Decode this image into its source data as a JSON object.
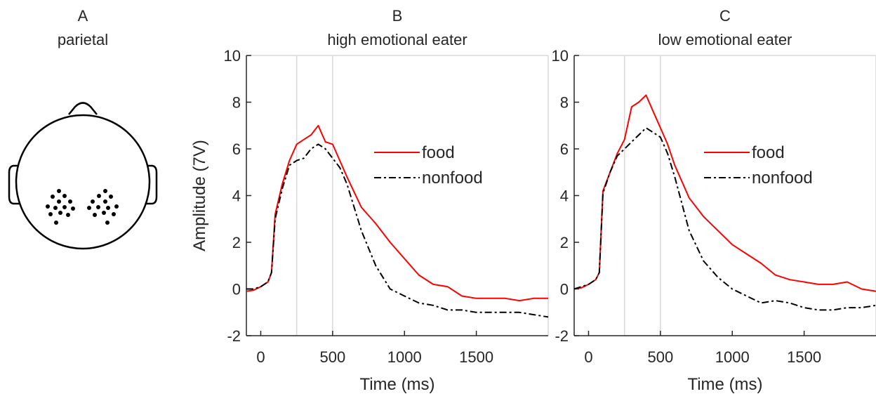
{
  "panel_a": {
    "letter": "A",
    "title": "parietal"
  },
  "colors": {
    "food": "#ff0000",
    "nonfood": "#000000",
    "window": "#d9d9d9",
    "axis": "#262626"
  },
  "chart_data": [
    {
      "type": "line",
      "letter": "B",
      "title": "high emotional eater",
      "xlabel": "Time (ms)",
      "ylabel": "Amplitude (7V)",
      "xlim": [
        -100,
        2000
      ],
      "ylim": [
        -2,
        10
      ],
      "xticks": [
        0,
        500,
        1000,
        1500
      ],
      "yticks": [
        -2,
        0,
        2,
        4,
        6,
        8,
        10
      ],
      "window_lines": [
        250,
        500
      ],
      "legend_position": "center-right",
      "series": [
        {
          "name": "food",
          "style": "solid",
          "x": [
            -100,
            -50,
            0,
            50,
            75,
            100,
            150,
            200,
            250,
            300,
            350,
            400,
            450,
            500,
            550,
            600,
            700,
            800,
            900,
            1000,
            1100,
            1200,
            1300,
            1400,
            1500,
            1600,
            1700,
            1800,
            1900,
            2000
          ],
          "y": [
            -0.1,
            -0.05,
            0.1,
            0.3,
            0.7,
            3.2,
            4.5,
            5.5,
            6.2,
            6.4,
            6.6,
            7.0,
            6.3,
            6.2,
            5.5,
            4.8,
            3.5,
            2.8,
            2.0,
            1.3,
            0.6,
            0.2,
            0.1,
            -0.3,
            -0.4,
            -0.4,
            -0.4,
            -0.5,
            -0.4,
            -0.4
          ]
        },
        {
          "name": "nonfood",
          "style": "dash-dot",
          "x": [
            -100,
            -50,
            0,
            50,
            75,
            100,
            150,
            200,
            250,
            300,
            350,
            400,
            450,
            500,
            550,
            600,
            700,
            800,
            900,
            1000,
            1100,
            1200,
            1300,
            1400,
            1500,
            1600,
            1700,
            1800,
            1900,
            2000
          ],
          "y": [
            0.0,
            0.0,
            0.1,
            0.3,
            0.7,
            3.0,
            4.3,
            5.3,
            5.5,
            5.6,
            6.0,
            6.2,
            6.0,
            5.6,
            5.2,
            4.5,
            2.5,
            1.0,
            0.0,
            -0.3,
            -0.6,
            -0.7,
            -0.9,
            -0.9,
            -1.0,
            -1.0,
            -1.0,
            -1.0,
            -1.1,
            -1.2
          ]
        }
      ]
    },
    {
      "type": "line",
      "letter": "C",
      "title": "low emotional eater",
      "xlabel": "Time (ms)",
      "ylabel": "",
      "xlim": [
        -100,
        2000
      ],
      "ylim": [
        -2,
        10
      ],
      "xticks": [
        0,
        500,
        1000,
        1500
      ],
      "yticks": [
        -2,
        0,
        2,
        4,
        6,
        8,
        10
      ],
      "window_lines": [
        250,
        500
      ],
      "legend_position": "center-right",
      "series": [
        {
          "name": "food",
          "style": "solid",
          "x": [
            -100,
            -50,
            0,
            50,
            75,
            100,
            150,
            200,
            250,
            300,
            350,
            400,
            450,
            500,
            550,
            600,
            700,
            800,
            900,
            1000,
            1100,
            1200,
            1300,
            1400,
            1500,
            1600,
            1700,
            1800,
            1900,
            2000
          ],
          "y": [
            0.0,
            0.05,
            0.2,
            0.4,
            0.7,
            4.2,
            5.0,
            5.8,
            6.4,
            7.8,
            8.0,
            8.3,
            7.6,
            6.9,
            6.2,
            5.3,
            3.9,
            3.1,
            2.5,
            1.9,
            1.5,
            1.1,
            0.6,
            0.4,
            0.3,
            0.2,
            0.2,
            0.3,
            0.0,
            -0.1
          ]
        },
        {
          "name": "nonfood",
          "style": "dash-dot",
          "x": [
            -100,
            -50,
            0,
            50,
            75,
            100,
            150,
            200,
            250,
            300,
            350,
            400,
            450,
            500,
            550,
            600,
            700,
            800,
            900,
            1000,
            1100,
            1200,
            1300,
            1400,
            1500,
            1600,
            1700,
            1800,
            1900,
            2000
          ],
          "y": [
            0.0,
            0.1,
            0.2,
            0.4,
            0.7,
            4.1,
            5.0,
            5.7,
            6.0,
            6.3,
            6.6,
            6.9,
            6.7,
            6.5,
            5.8,
            4.8,
            2.5,
            1.2,
            0.5,
            0.0,
            -0.3,
            -0.6,
            -0.5,
            -0.6,
            -0.8,
            -0.9,
            -0.9,
            -0.8,
            -0.8,
            -0.7
          ]
        }
      ]
    }
  ]
}
